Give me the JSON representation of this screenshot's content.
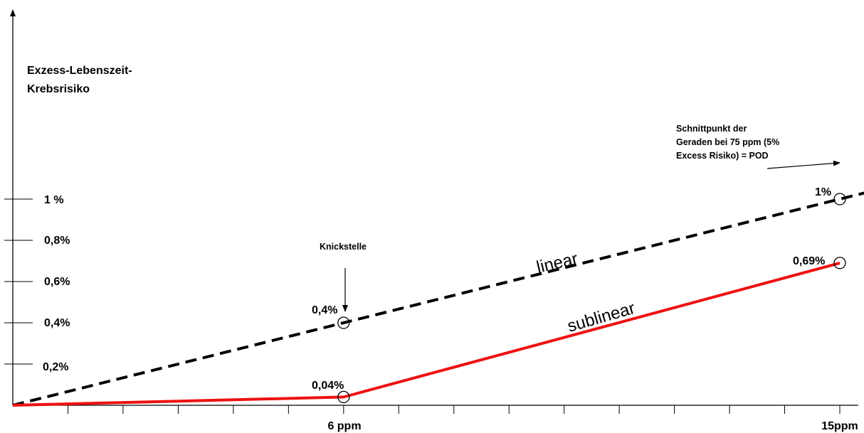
{
  "chart_data": {
    "type": "line",
    "ylabel_lines": [
      "Exzess-Lebenszeit-",
      "Krebsrisiko"
    ],
    "y_ticks": [
      "0,2%",
      "0,4%",
      "0,6%",
      "0,8%",
      "1 %"
    ],
    "x_tick_labels": [
      {
        "x": 6,
        "label": "6 ppm"
      },
      {
        "x": 15,
        "label": "15ppm"
      }
    ],
    "xlim": [
      0,
      15
    ],
    "ylim": [
      0,
      1
    ],
    "series": [
      {
        "name": "linear",
        "style": "dashed",
        "color": "#000000",
        "x": [
          0,
          6,
          15,
          15.5
        ],
        "y": [
          0,
          0.4,
          1.0,
          1.033
        ]
      },
      {
        "name": "sublinear",
        "style": "solid",
        "color": "#ee1111",
        "x": [
          0,
          6,
          15
        ],
        "y": [
          0,
          0.04,
          0.69
        ]
      }
    ],
    "points": [
      {
        "x": 6,
        "y": 0.4,
        "label": "0,4%"
      },
      {
        "x": 6,
        "y": 0.04,
        "label": "0,04%"
      },
      {
        "x": 15,
        "y": 1.0,
        "label": "1%"
      },
      {
        "x": 15,
        "y": 0.69,
        "label": "0,69%"
      }
    ],
    "annotations": {
      "knick": "Knickstelle",
      "schnitt_lines": [
        "Schnittpunkt der",
        "Geraden bei  75 ppm (5%",
        "Excess Risiko) = POD"
      ]
    }
  }
}
